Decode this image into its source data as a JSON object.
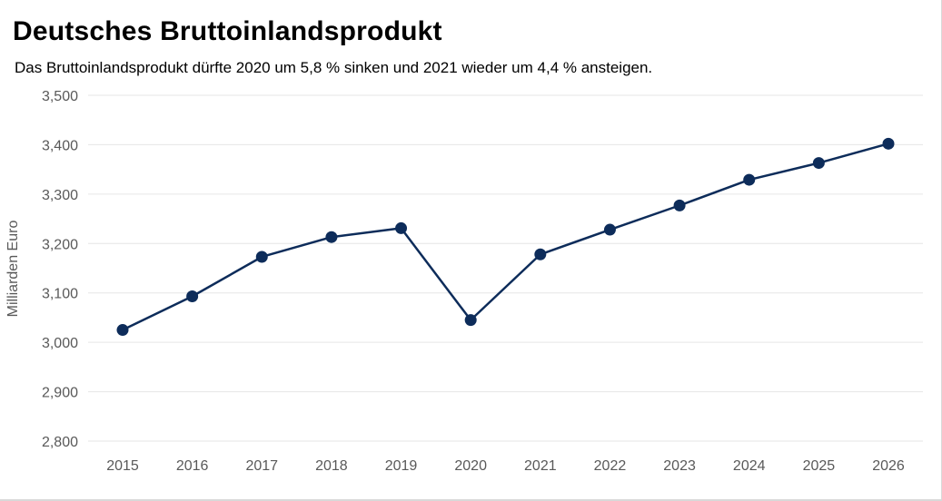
{
  "chart_data": {
    "type": "line",
    "title": "Deutsches Bruttoinlandsprodukt",
    "subtitle": "Das Bruttoinlandsprodukt dürfte 2020 um 5,8 % sinken und 2021 wieder um 4,4 % ansteigen.",
    "xlabel": "",
    "ylabel": "Milliarden Euro",
    "ylim": [
      2800,
      3500
    ],
    "yticks": [
      2800,
      2900,
      3000,
      3100,
      3200,
      3300,
      3400,
      3500
    ],
    "ytick_labels": [
      "2,800",
      "2,900",
      "3,000",
      "3,100",
      "3,200",
      "3,300",
      "3,400",
      "3,500"
    ],
    "categories": [
      "2015",
      "2016",
      "2017",
      "2018",
      "2019",
      "2020",
      "2021",
      "2022",
      "2023",
      "2024",
      "2025",
      "2026"
    ],
    "series": [
      {
        "values": [
          3025,
          3093,
          3173,
          3213,
          3231,
          3045,
          3178,
          3228,
          3277,
          3329,
          3363,
          3402
        ]
      }
    ],
    "grid": true,
    "legend": "none",
    "line_color": "#0d2c5a"
  }
}
